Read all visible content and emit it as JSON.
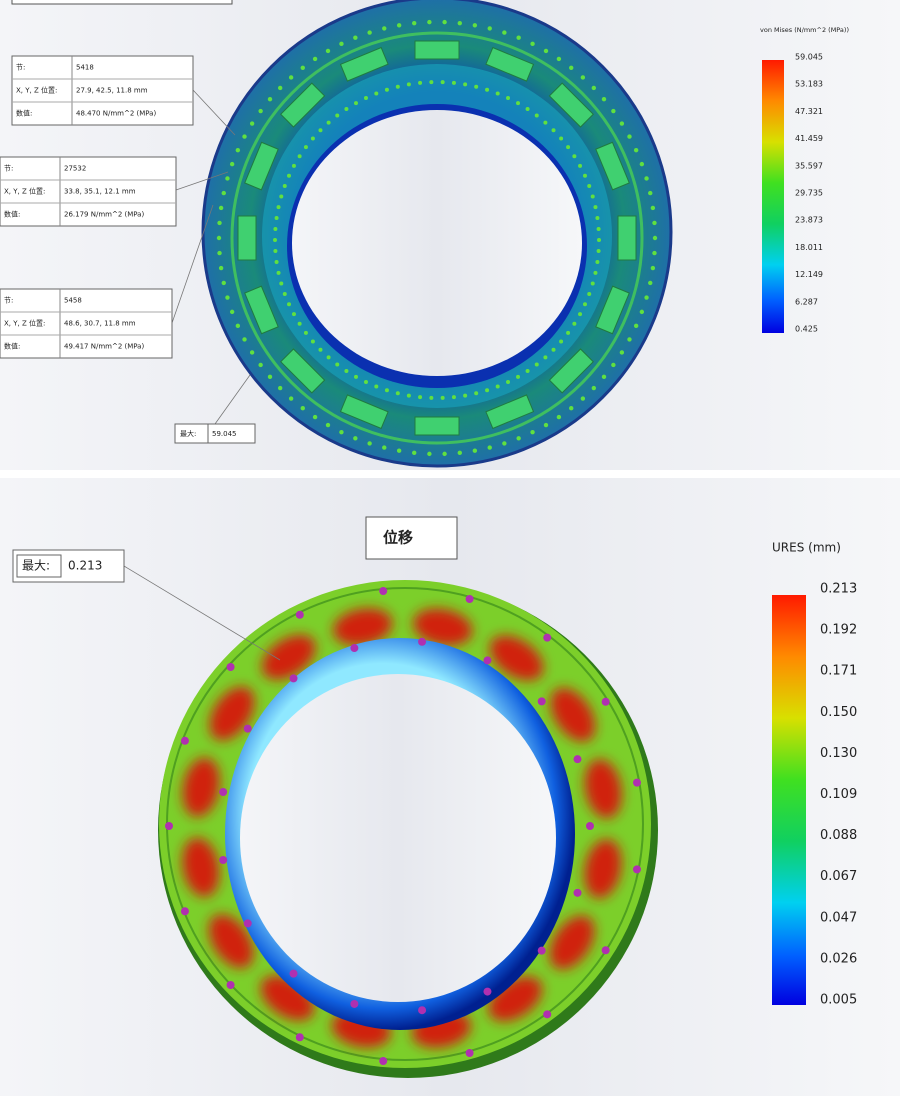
{
  "stress_view": {
    "legend": {
      "title": "von Mises (N/mm^2 (MPa))",
      "ticks": [
        "59.045",
        "53.183",
        "47.321",
        "41.459",
        "35.597",
        "29.735",
        "23.873",
        "18.011",
        "12.149",
        "6.287",
        "0.425"
      ]
    },
    "probes": [
      {
        "node_label": "节:",
        "node": "5418",
        "position_label": "X, Y, Z 位置:",
        "position": "27.9, 42.5, 11.8 mm",
        "value_label": "数值:",
        "value": "48.470 N/mm^2 (MPa)"
      },
      {
        "node_label": "节:",
        "node": "27532",
        "position_label": "X, Y, Z 位置:",
        "position": "33.8, 35.1, 12.1 mm",
        "value_label": "数值:",
        "value": "26.179 N/mm^2 (MPa)"
      },
      {
        "node_label": "节:",
        "node": "5458",
        "position_label": "X, Y, Z 位置:",
        "position": "48.6, 30.7, 11.8 mm",
        "value_label": "数值:",
        "value": "49.417 N/mm^2 (MPa)"
      }
    ],
    "max": {
      "label": "最大:",
      "value": "59.045"
    }
  },
  "displacement_view": {
    "title": "位移",
    "legend": {
      "title": "URES (mm)",
      "ticks": [
        "0.213",
        "0.192",
        "0.171",
        "0.150",
        "0.130",
        "0.109",
        "0.088",
        "0.067",
        "0.047",
        "0.026",
        "0.005"
      ]
    },
    "max": {
      "label": "最大:",
      "value": "0.213"
    }
  }
}
